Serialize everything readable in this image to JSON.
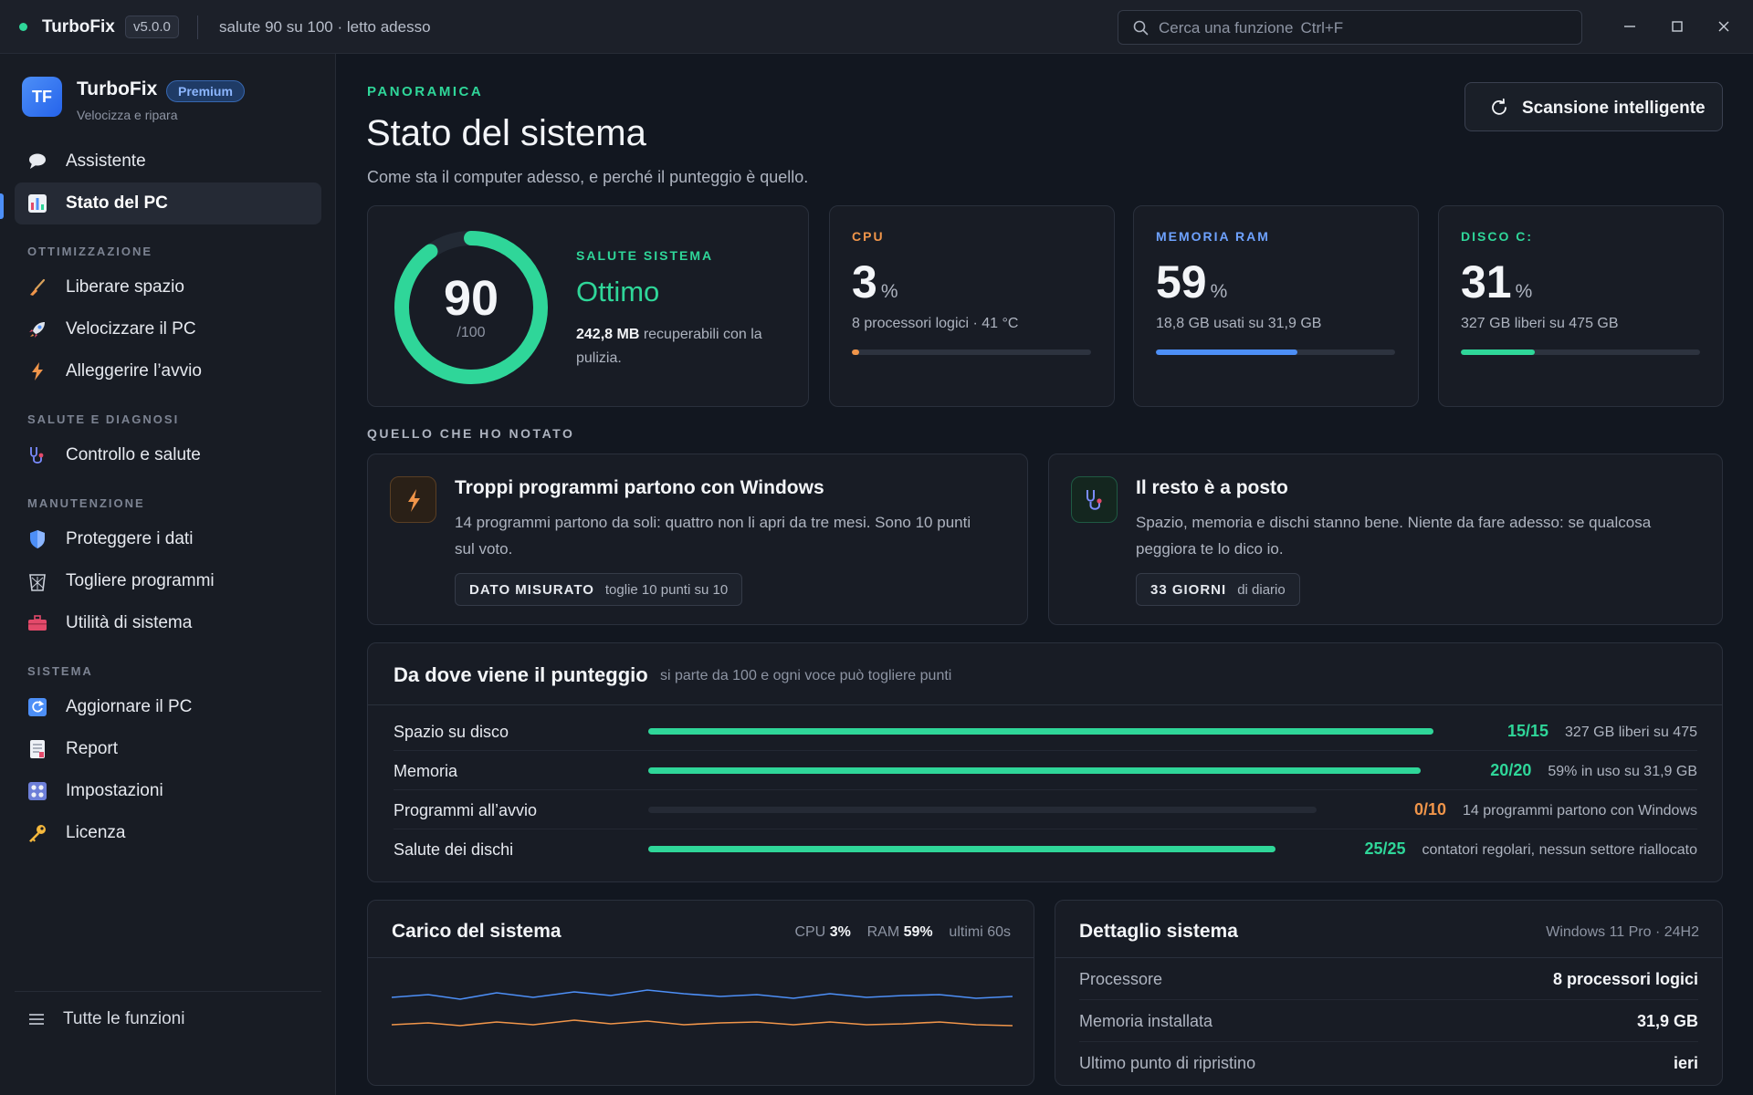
{
  "titlebar": {
    "app_name": "TurboFix",
    "version": "v5.0.0",
    "status": "salute 90 su 100 · letto adesso",
    "search_placeholder": "Cerca una funzione",
    "search_shortcut": "Ctrl+F"
  },
  "sidebar": {
    "brand": {
      "logo": "TF",
      "name": "TurboFix",
      "badge": "Premium",
      "tagline": "Velocizza e ripara"
    },
    "top_items": [
      {
        "label": "Assistente",
        "icon": "speech-bubble-icon"
      },
      {
        "label": "Stato del PC",
        "icon": "bar-chart-icon",
        "active": true
      }
    ],
    "sections": [
      {
        "title": "OTTIMIZZAZIONE",
        "items": [
          {
            "label": "Liberare spazio",
            "icon": "broom-icon"
          },
          {
            "label": "Velocizzare il PC",
            "icon": "rocket-icon"
          },
          {
            "label": "Alleggerire l’avvio",
            "icon": "lightning-icon"
          }
        ]
      },
      {
        "title": "SALUTE E DIAGNOSI",
        "items": [
          {
            "label": "Controllo e salute",
            "icon": "stethoscope-icon"
          }
        ]
      },
      {
        "title": "MANUTENZIONE",
        "items": [
          {
            "label": "Proteggere i dati",
            "icon": "shield-icon"
          },
          {
            "label": "Togliere programmi",
            "icon": "wastebasket-icon"
          },
          {
            "label": "Utilità di sistema",
            "icon": "toolbox-icon"
          }
        ]
      },
      {
        "title": "SISTEMA",
        "items": [
          {
            "label": "Aggiornare il PC",
            "icon": "refresh-icon"
          },
          {
            "label": "Report",
            "icon": "document-icon"
          },
          {
            "label": "Impostazioni",
            "icon": "settings-grid-icon"
          },
          {
            "label": "Licenza",
            "icon": "key-icon"
          }
        ]
      }
    ],
    "footer_label": "Tutte le funzioni"
  },
  "header": {
    "eyebrow": "PANORAMICA",
    "title": "Stato del sistema",
    "subtitle": "Come sta il computer adesso, e perché il punteggio è quello.",
    "scan_button": "Scansione intelligente"
  },
  "health": {
    "score": 90,
    "score_max": "/100",
    "fraction": 0.9,
    "label": "SALUTE SISTEMA",
    "value": "Ottimo",
    "recoverable": "242,8 MB",
    "recoverable_text": "recuperabili con la pulizia."
  },
  "metrics": [
    {
      "label": "CPU",
      "value": "3",
      "unit": "%",
      "desc": "8 processori logici · 41 °C",
      "percent": 3,
      "color": "#f0954a"
    },
    {
      "label": "MEMORIA RAM",
      "value": "59",
      "unit": "%",
      "desc": "18,8 GB usati su 31,9 GB",
      "percent": 59,
      "color": "#4d8ff7"
    },
    {
      "label": "DISCO C:",
      "value": "31",
      "unit": "%",
      "desc": "327 GB liberi su 475 GB",
      "percent": 31,
      "color": "#2fd699"
    }
  ],
  "notices_heading": "QUELLO CHE HO NOTATO",
  "notices": [
    {
      "title": "Troppi programmi partono con Windows",
      "text_line1": "14 programmi partono da soli: quattro non li apri da tre mesi. Sono 10 punti",
      "text_line2": "sul voto.",
      "tag_key": "DATO MISURATO",
      "tag_value": "toglie 10 punti su 10"
    },
    {
      "title": "Il resto è a posto",
      "text_line1": "Spazio, memoria e dischi stanno bene. Niente da fare adesso: se qualcosa",
      "text_line2": "peggiora te lo dico io.",
      "tag_key": "33 GIORNI",
      "tag_value": "di diario"
    }
  ],
  "score_breakdown": {
    "title": "Da dove viene il punteggio",
    "subtitle": "si parte da 100 e ogni voce può togliere punti",
    "rows": [
      {
        "label": "Spazio su disco",
        "score": "15/15",
        "note": "327 GB liberi su 475",
        "fraction": 1.0,
        "score_color": "#2fd699"
      },
      {
        "label": "Memoria",
        "score": "20/20",
        "note": "59% in uso su 31,9 GB",
        "fraction": 1.0,
        "score_color": "#2fd699"
      },
      {
        "label": "Programmi all’avvio",
        "score": "0/10",
        "note": "14 programmi partono con Windows",
        "fraction": 0.0,
        "score_color": "#f0954a"
      },
      {
        "label": "Salute dei dischi",
        "score": "25/25",
        "note": "contatori regolari, nessun settore riallocato",
        "fraction": 1.0,
        "score_color": "#2fd699"
      }
    ]
  },
  "load": {
    "title": "Carico del sistema",
    "cpu_label": "CPU",
    "cpu_value": "3%",
    "ram_label": "RAM",
    "ram_value": "59%",
    "window": "ultimi 60s",
    "cpu_color": "#f0954a",
    "ram_color": "#4d8ff7"
  },
  "detail": {
    "title": "Dettaglio sistema",
    "os": "Windows 11 Pro · 24H2",
    "rows": [
      {
        "key": "Processore",
        "value": "8 processori logici"
      },
      {
        "key": "Memoria installata",
        "value": "31,9 GB"
      },
      {
        "key": "Ultimo punto di ripristino",
        "value": "ieri"
      }
    ]
  }
}
